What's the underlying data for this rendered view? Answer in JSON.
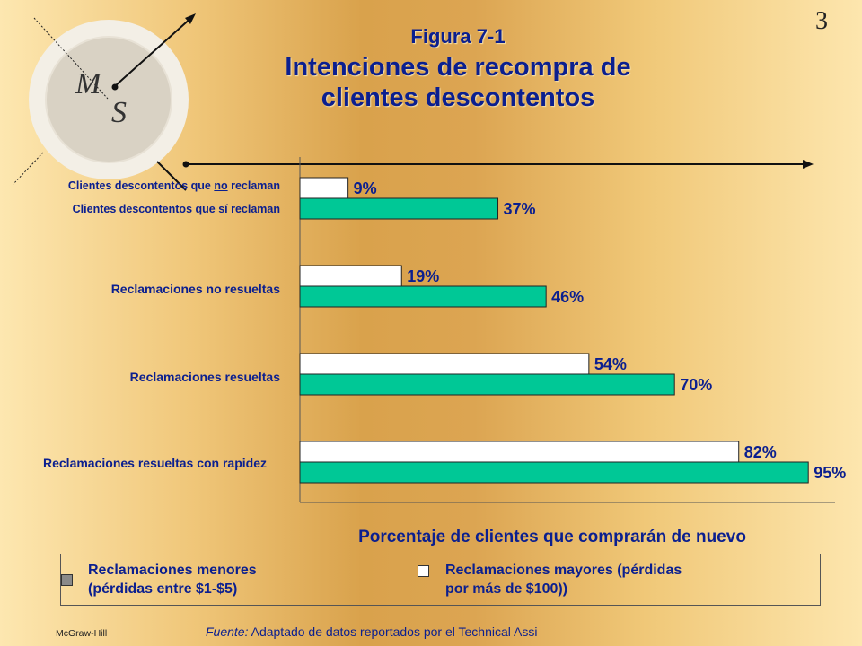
{
  "slide_number": "3",
  "figure_label": "Figura 7-1",
  "title_line1": "Intenciones de recompra de",
  "title_line2": "clientes descontentos",
  "logo": {
    "letter_top": "M",
    "letter_bottom": "S"
  },
  "chart_data": {
    "type": "bar",
    "orientation": "horizontal",
    "xlabel": "Porcentaje de clientes que comprarán de nuevo",
    "xlim": [
      0,
      100
    ],
    "categories": [
      {
        "label": "Clientes descontentos que no reclaman",
        "label_alt": "Clientes descontentos que sí reclaman"
      },
      {
        "label": "Reclamaciones no resueltas"
      },
      {
        "label": "Reclamaciones resueltas"
      },
      {
        "label": "Reclamaciones resueltas con rapidez"
      }
    ],
    "series": [
      {
        "name": "Reclamaciones mayores (pérdidas por más de $100))",
        "color": "#ffffff",
        "values": [
          9,
          19,
          54,
          82
        ]
      },
      {
        "name": "Reclamaciones menores (pérdidas entre $1-$5)",
        "color": "#00c896",
        "values": [
          37,
          46,
          70,
          95
        ]
      }
    ],
    "value_suffix": "%"
  },
  "cat_labels": {
    "c1a_pre": "Clientes descontentos que ",
    "c1a_em": "no",
    "c1a_post": " reclaman",
    "c1b_pre": "Clientes descontentos que ",
    "c1b_em": "sí",
    "c1b_post": " reclaman",
    "c2": "Reclamaciones no resueltas",
    "c3": "Reclamaciones resueltas",
    "c4": "Reclamaciones resueltas con rapidez"
  },
  "legend": {
    "minor_line1": "Reclamaciones menores",
    "minor_line2": "(pérdidas entre $1-$5)",
    "major_line1": "Reclamaciones mayores (pérdidas",
    "major_line2": "por más de $100))",
    "minor_swatch_color": "#8a8a8a",
    "major_swatch_color": "#ffffff"
  },
  "source_label": "Fuente:",
  "source_text": " Adaptado de datos reportados por el Technical Assi",
  "brand": "McGraw-Hill"
}
